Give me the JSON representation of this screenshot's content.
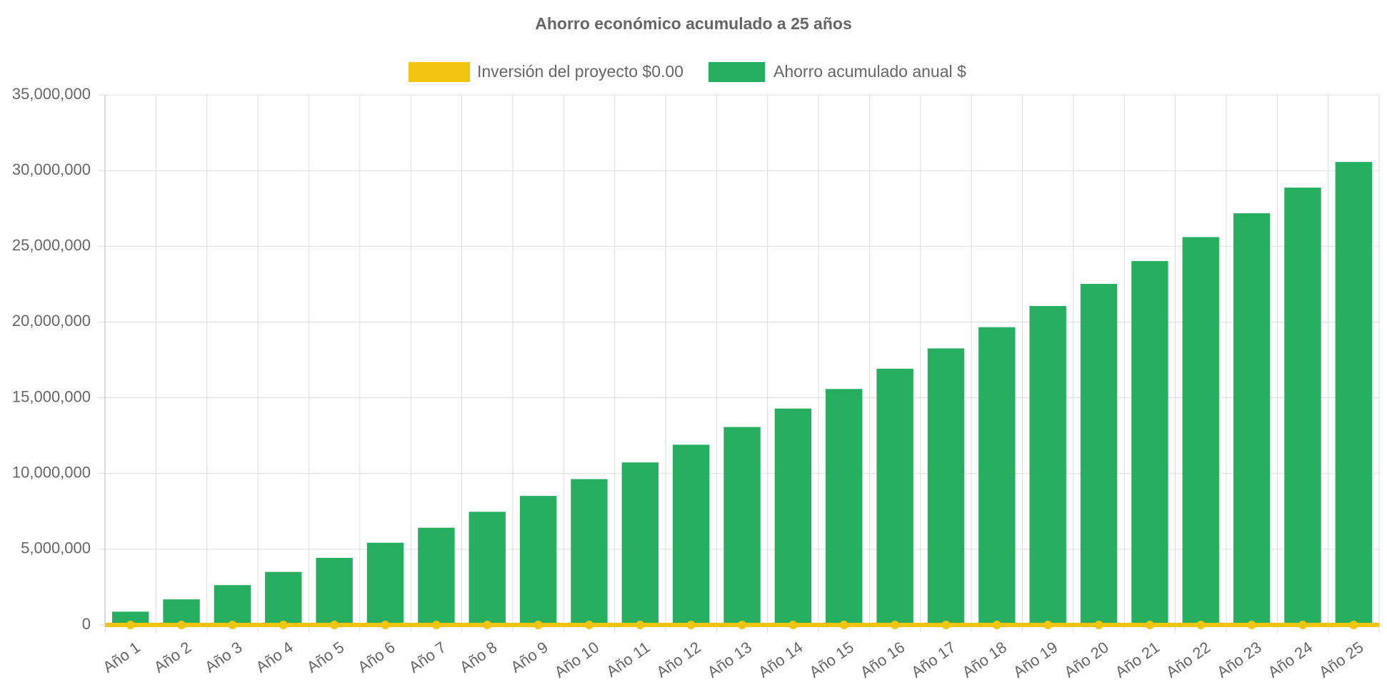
{
  "chart_data": {
    "type": "bar",
    "title": "Ahorro económico acumulado a 25 años",
    "categories": [
      "Año 1",
      "Año 2",
      "Año 3",
      "Año 4",
      "Año 5",
      "Año 6",
      "Año 7",
      "Año 8",
      "Año 9",
      "Año 10",
      "Año 11",
      "Año 12",
      "Año 13",
      "Año 14",
      "Año 15",
      "Año 16",
      "Año 17",
      "Año 18",
      "Año 19",
      "Año 20",
      "Año 21",
      "Año 22",
      "Año 23",
      "Año 24",
      "Año 25"
    ],
    "series": [
      {
        "name": "Inversión del proyecto $0.00",
        "type": "line",
        "color": "#f1c40f",
        "values": [
          0,
          0,
          0,
          0,
          0,
          0,
          0,
          0,
          0,
          0,
          0,
          0,
          0,
          0,
          0,
          0,
          0,
          0,
          0,
          0,
          0,
          0,
          0,
          0,
          0
        ]
      },
      {
        "name": "Ahorro acumulado anual $",
        "type": "bar",
        "color": "#27ae60",
        "values": [
          875000,
          1690000,
          2630000,
          3500000,
          4430000,
          5430000,
          6420000,
          7470000,
          8520000,
          9630000,
          10730000,
          11900000,
          13070000,
          14290000,
          15580000,
          16920000,
          18260000,
          19660000,
          21060000,
          22520000,
          24030000,
          25610000,
          27180000,
          28880000,
          30570000
        ]
      }
    ],
    "ylim": [
      0,
      35000000
    ],
    "yticks": [
      0,
      {
        "value": 5000000,
        "label": "5,000,000"
      },
      {
        "value": 10000000,
        "label": "10,000,000"
      },
      {
        "value": 15000000,
        "label": "15,000,000"
      },
      {
        "value": 20000000,
        "label": "20,000,000"
      },
      {
        "value": 25000000,
        "label": "25,000,000"
      },
      {
        "value": 30000000,
        "label": "30,000,000"
      },
      {
        "value": 35000000,
        "label": "35,000,000"
      }
    ],
    "grid": true,
    "legend": "top"
  }
}
